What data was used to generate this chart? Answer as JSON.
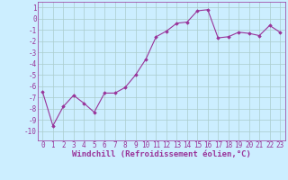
{
  "x": [
    0,
    1,
    2,
    3,
    4,
    5,
    6,
    7,
    8,
    9,
    10,
    11,
    12,
    13,
    14,
    15,
    16,
    17,
    18,
    19,
    20,
    21,
    22,
    23
  ],
  "y": [
    -6.5,
    -9.5,
    -7.8,
    -6.8,
    -7.5,
    -8.3,
    -6.6,
    -6.6,
    -6.1,
    -5.0,
    -3.6,
    -1.6,
    -1.1,
    -0.4,
    -0.3,
    0.7,
    0.8,
    -1.7,
    -1.6,
    -1.2,
    -1.3,
    -1.5,
    -0.6,
    -1.2
  ],
  "line_color": "#993399",
  "marker": "D",
  "markersize": 1.8,
  "linewidth": 0.8,
  "xlabel": "Windchill (Refroidissement éolien,°C)",
  "ylabel": "",
  "ylim": [
    -10.8,
    1.5
  ],
  "xlim": [
    -0.5,
    23.5
  ],
  "yticks": [
    1,
    0,
    -1,
    -2,
    -3,
    -4,
    -5,
    -6,
    -7,
    -8,
    -9,
    -10
  ],
  "xticks": [
    0,
    1,
    2,
    3,
    4,
    5,
    6,
    7,
    8,
    9,
    10,
    11,
    12,
    13,
    14,
    15,
    16,
    17,
    18,
    19,
    20,
    21,
    22,
    23
  ],
  "bg_color": "#cceeff",
  "grid_color": "#aacccc",
  "xlabel_color": "#993399",
  "tick_color": "#993399",
  "font_size_xlabel": 6.5,
  "font_size_ticks": 5.5
}
